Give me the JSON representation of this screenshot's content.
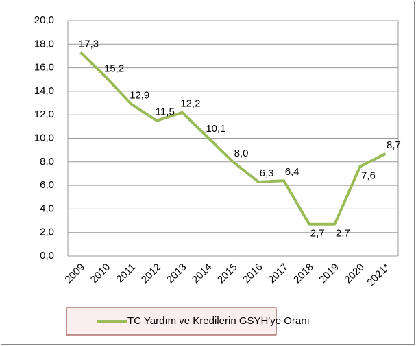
{
  "chart_data": {
    "type": "line",
    "categories": [
      "2009",
      "2010",
      "2011",
      "2012",
      "2013",
      "2014",
      "2015",
      "2016",
      "2017",
      "2018",
      "2019",
      "2020",
      "2021*"
    ],
    "series": [
      {
        "name": "TC Yardım ve Kredilerin GSYH'ye Oranı",
        "color": "#9bbb59",
        "values": [
          17.3,
          15.2,
          12.9,
          11.5,
          12.2,
          10.1,
          8.0,
          6.3,
          6.4,
          2.7,
          2.7,
          7.6,
          8.7
        ],
        "value_labels": [
          "17,3",
          "15,2",
          "12,9",
          "11,5",
          "12,2",
          "10,1",
          "8,0",
          "6,3",
          "6,4",
          "2,7",
          "2,7",
          "7,6",
          "8,7"
        ]
      }
    ],
    "ylim": [
      0,
      20
    ],
    "yticks": [
      {
        "value": 0,
        "label": "0,0"
      },
      {
        "value": 2,
        "label": "2,0"
      },
      {
        "value": 4,
        "label": "4,0"
      },
      {
        "value": 6,
        "label": "6,0"
      },
      {
        "value": 8,
        "label": "8,0"
      },
      {
        "value": 10,
        "label": "10,0"
      },
      {
        "value": 12,
        "label": "12,0"
      },
      {
        "value": 14,
        "label": "14,0"
      },
      {
        "value": 16,
        "label": "16,0"
      },
      {
        "value": 18,
        "label": "18,0"
      },
      {
        "value": 20,
        "label": "20,0"
      }
    ],
    "grid": true,
    "legend": "bottom"
  }
}
